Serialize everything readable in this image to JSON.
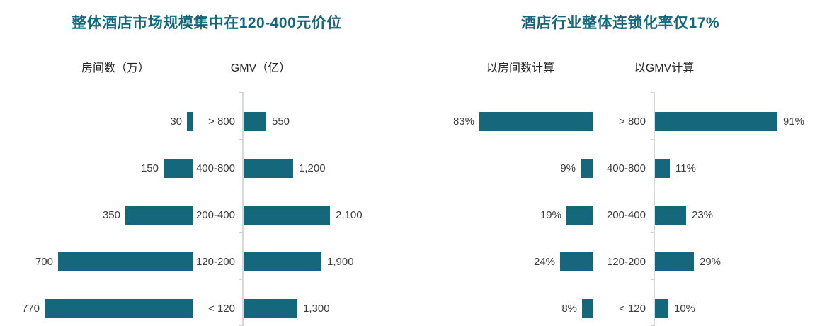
{
  "page": {
    "background_color": "#ffffff",
    "bar_color": "#15677b",
    "title_color": "#15677b",
    "label_color": "#3d3d3d",
    "axis_color": "#d9d9d9"
  },
  "chart_data": [
    {
      "type": "bar",
      "layout_hint": "tornado chart: two back-to-back horizontal bar series sharing a central category axis; left series grows leftward, right series grows rightward; gridlines off; value labels at bar ends",
      "title": "整体酒店市场规模集中在120-400元价位",
      "categories": [
        "> 800",
        "400-800",
        "200-400",
        "120-200",
        "< 120"
      ],
      "series": [
        {
          "name": "房间数（万）",
          "direction": "left",
          "values": [
            30,
            150,
            350,
            700,
            770
          ],
          "labels": [
            "30",
            "150",
            "350",
            "700",
            "770"
          ]
        },
        {
          "name": "GMV（亿）",
          "direction": "right",
          "values": [
            550,
            1200,
            2100,
            1900,
            1300
          ],
          "labels": [
            "550",
            "1,200",
            "2,100",
            "1,900",
            "1,300"
          ]
        }
      ]
    },
    {
      "type": "bar",
      "layout_hint": "tornado chart: two back-to-back horizontal percentage bar series sharing a central category axis; gridlines off; value labels at bar ends",
      "title": "酒店行业整体连锁化率仅17%",
      "categories": [
        "> 800",
        "400-800",
        "200-400",
        "120-200",
        "< 120"
      ],
      "series": [
        {
          "name": "以房间数计算",
          "direction": "left",
          "values": [
            83,
            9,
            19,
            24,
            8
          ],
          "labels": [
            "83%",
            "9%",
            "19%",
            "24%",
            "8%"
          ]
        },
        {
          "name": "以GMV计算",
          "direction": "right",
          "values": [
            91,
            11,
            23,
            29,
            10
          ],
          "labels": [
            "91%",
            "11%",
            "23%",
            "29%",
            "10%"
          ]
        }
      ]
    }
  ]
}
